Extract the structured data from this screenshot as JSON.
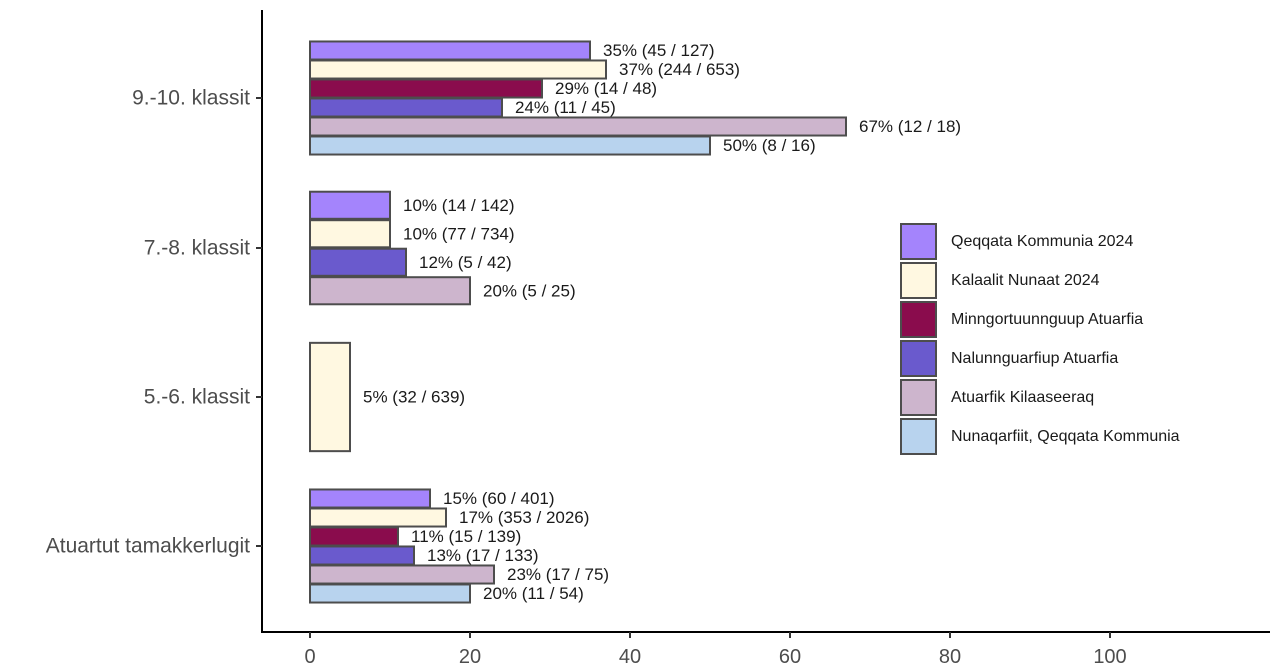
{
  "chart_data": {
    "type": "bar",
    "orientation": "horizontal",
    "categories": [
      "9.-10. klassit",
      "7.-8. klassit",
      "5.-6. klassit",
      "Atuartut tamakkerlugit"
    ],
    "series": [
      {
        "name": "Qeqqata Kommunia 2024",
        "color": "#a484fc"
      },
      {
        "name": "Kalaalit Nunaat 2024",
        "color": "#fff8e1"
      },
      {
        "name": "Minngortuunnguup Atuarfia",
        "color": "#8a0c4d"
      },
      {
        "name": "Nalunnguarfiup Atuarfia",
        "color": "#6a5acd"
      },
      {
        "name": "Atuarfik Kilaaseeraq",
        "color": "#cdb5cd"
      },
      {
        "name": "Nunaqarfiit, Qeqqata Kommunia",
        "color": "#b8d3ee"
      }
    ],
    "bars": [
      [
        {
          "series": 0,
          "value": 35,
          "label": "35% (45 / 127)"
        },
        {
          "series": 1,
          "value": 37,
          "label": "37% (244 / 653)"
        },
        {
          "series": 2,
          "value": 29,
          "label": "29% (14 / 48)"
        },
        {
          "series": 3,
          "value": 24,
          "label": "24% (11 / 45)"
        },
        {
          "series": 4,
          "value": 67,
          "label": "67% (12 / 18)"
        },
        {
          "series": 5,
          "value": 50,
          "label": "50% (8 / 16)"
        }
      ],
      [
        {
          "series": 0,
          "value": 10,
          "label": "10% (14 / 142)"
        },
        {
          "series": 1,
          "value": 10,
          "label": "10% (77 / 734)"
        },
        {
          "series": 3,
          "value": 12,
          "label": "12% (5 / 42)"
        },
        {
          "series": 4,
          "value": 20,
          "label": "20% (5 / 25)"
        }
      ],
      [
        {
          "series": 1,
          "value": 5,
          "label": "5% (32 / 639)"
        }
      ],
      [
        {
          "series": 0,
          "value": 15,
          "label": "15% (60 / 401)"
        },
        {
          "series": 1,
          "value": 17,
          "label": "17% (353 / 2026)"
        },
        {
          "series": 2,
          "value": 11,
          "label": "11% (15 / 139)"
        },
        {
          "series": 3,
          "value": 13,
          "label": "13% (17 / 133)"
        },
        {
          "series": 4,
          "value": 23,
          "label": "23% (17 / 75)"
        },
        {
          "series": 5,
          "value": 20,
          "label": "20% (11 / 54)"
        }
      ]
    ],
    "xticks": [
      0,
      20,
      40,
      60,
      80,
      100
    ],
    "xlim": [
      -6,
      120
    ],
    "title": "",
    "xlabel": "",
    "ylabel": "",
    "grid": false,
    "legend_position": "right"
  }
}
